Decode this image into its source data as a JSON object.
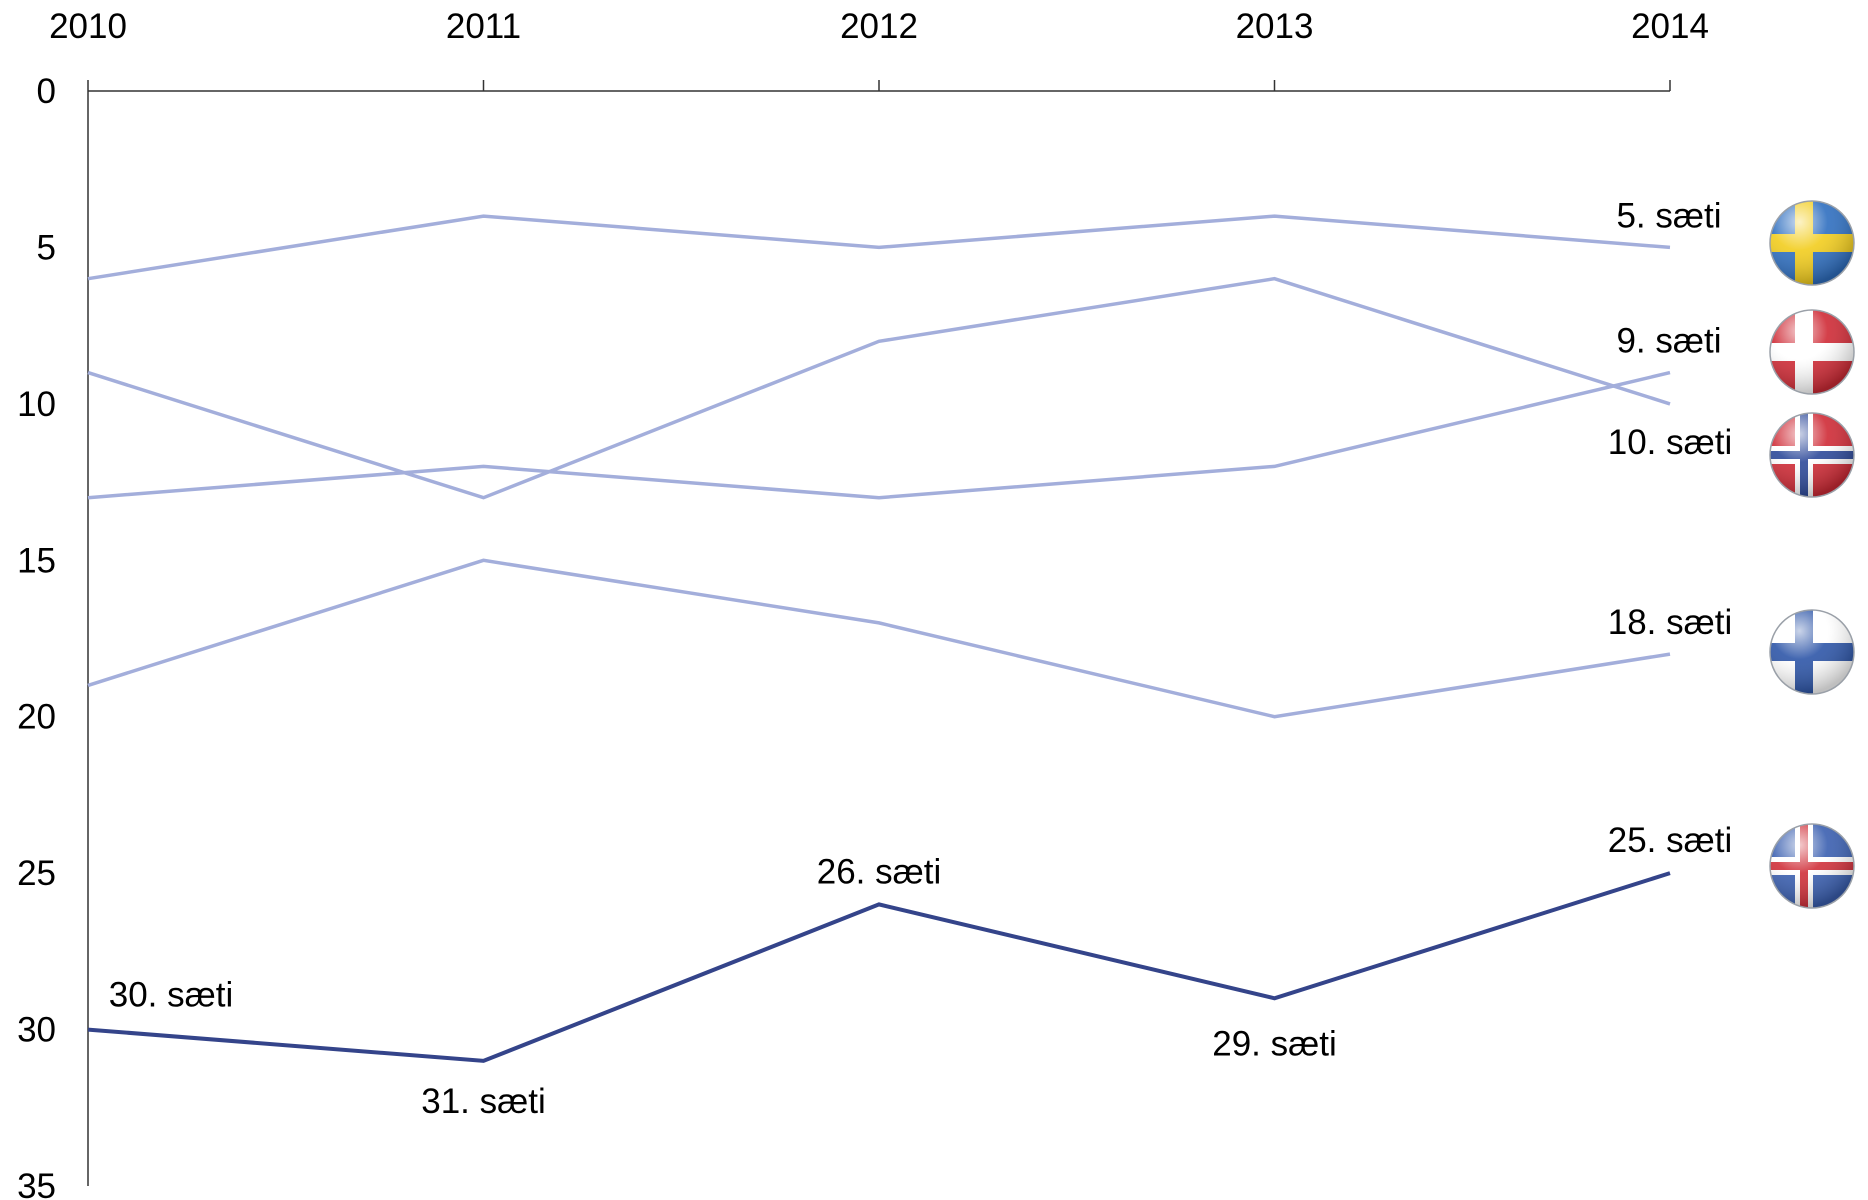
{
  "chart_data": {
    "type": "line",
    "x": [
      "2010",
      "2011",
      "2012",
      "2013",
      "2014"
    ],
    "ylim": [
      0,
      35
    ],
    "y_inverted": true,
    "y_ticks": [
      "0",
      "5",
      "10",
      "15",
      "20",
      "25",
      "30",
      "35"
    ],
    "x_axis_position": "top",
    "grid": false,
    "series": [
      {
        "country": "sweden",
        "values": [
          6,
          4,
          5,
          4,
          5
        ],
        "color": "#a3aedb",
        "end_label": "5. sæti"
      },
      {
        "country": "denmark",
        "values": [
          13,
          12,
          13,
          12,
          9
        ],
        "color": "#a3aedb",
        "end_label": "9. sæti"
      },
      {
        "country": "norway",
        "values": [
          9,
          13,
          8,
          6,
          10
        ],
        "color": "#a3aedb",
        "end_label": "10. sæti"
      },
      {
        "country": "finland",
        "values": [
          19,
          15,
          17,
          20,
          18
        ],
        "color": "#a3aedb",
        "end_label": "18. sæti"
      },
      {
        "country": "iceland",
        "values": [
          30,
          31,
          26,
          29,
          25
        ],
        "color": "#34448a",
        "point_labels": [
          "30. sæti",
          "31. sæti",
          "26. sæti",
          "29. sæti",
          "25. sæti"
        ]
      }
    ],
    "flags": [
      {
        "country": "sweden",
        "icon": "sweden-flag-icon",
        "field": "#2f6fc0",
        "cross": "#f2cd1e",
        "inner": null
      },
      {
        "country": "denmark",
        "icon": "denmark-flag-icon",
        "field": "#cf2b36",
        "cross": "#ffffff",
        "inner": null
      },
      {
        "country": "norway",
        "icon": "norway-flag-icon",
        "field": "#cf2b36",
        "cross": "#ffffff",
        "inner": "#2e4a9a"
      },
      {
        "country": "finland",
        "icon": "finland-flag-icon",
        "field": "#ffffff",
        "cross": "#2e56a8",
        "inner": null
      },
      {
        "country": "iceland",
        "icon": "iceland-flag-icon",
        "field": "#3a5fb0",
        "cross": "#ffffff",
        "inner": "#d0303a"
      }
    ]
  }
}
